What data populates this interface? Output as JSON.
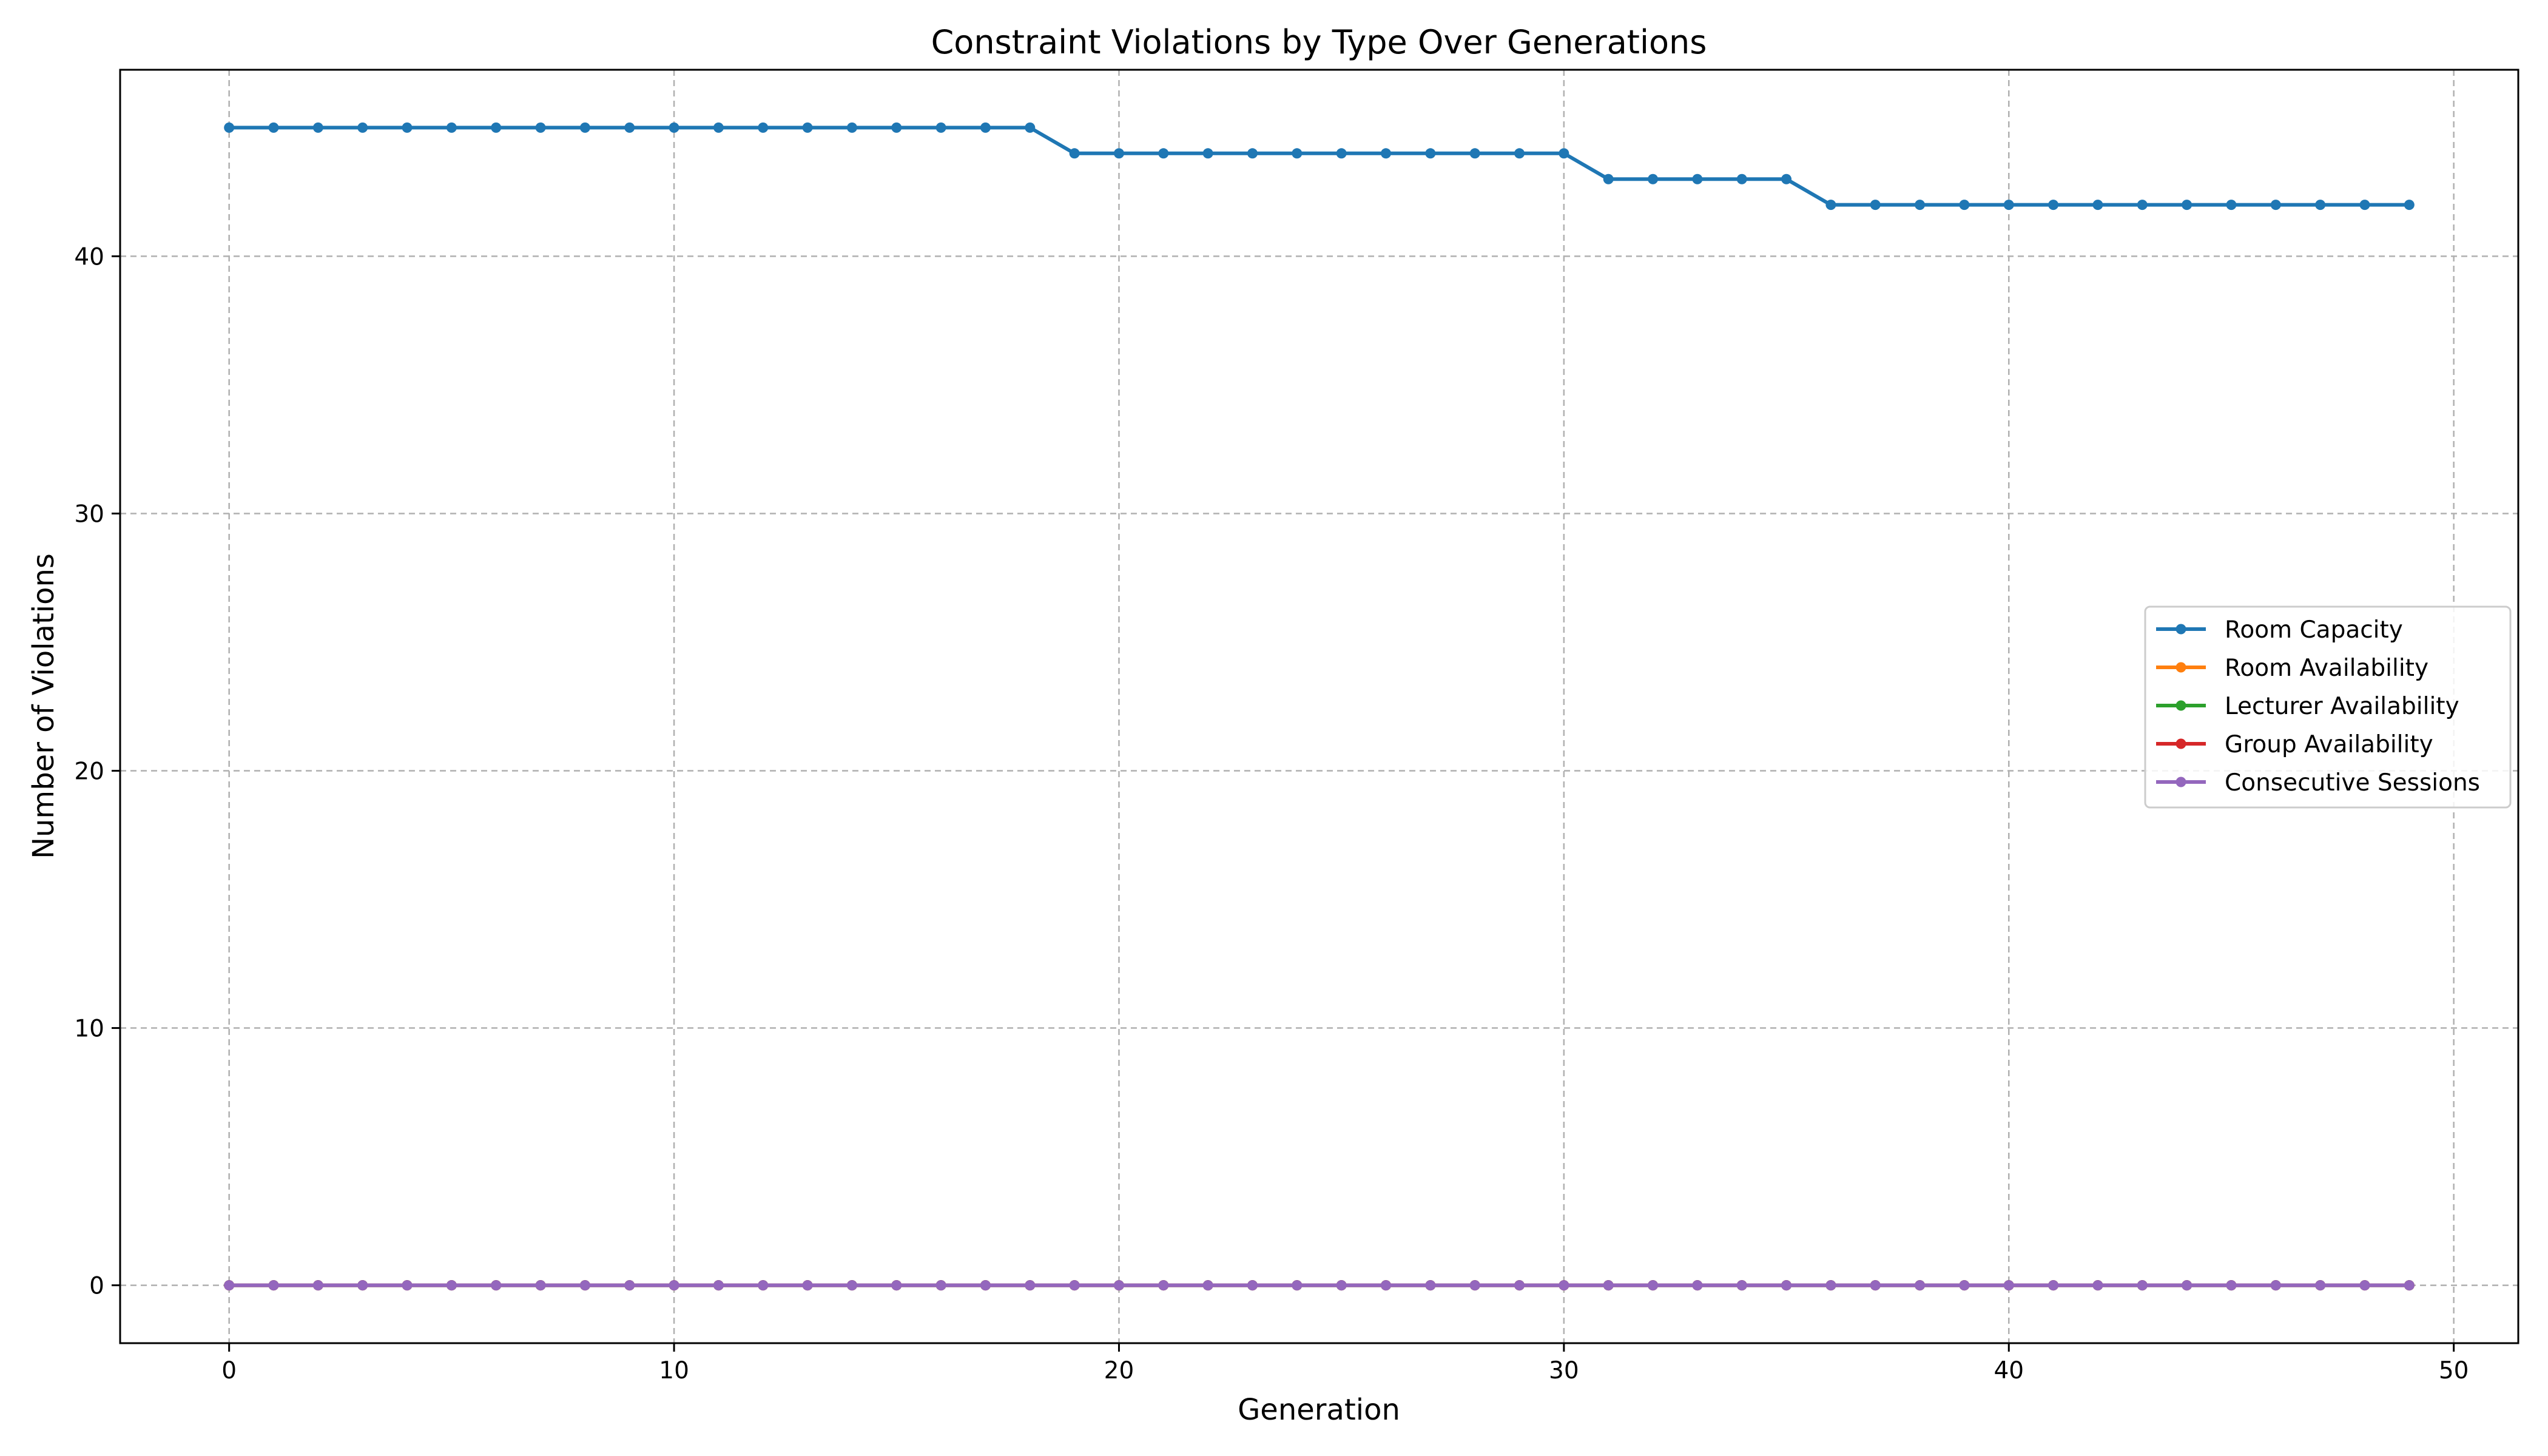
{
  "chart_data": {
    "type": "line",
    "title": "Constraint Violations by Type Over Generations",
    "xlabel": "Generation",
    "ylabel": "Number of Violations",
    "xlim": [
      -2.45,
      51.45
    ],
    "ylim": [
      -2.25,
      47.25
    ],
    "xticks": [
      0,
      10,
      20,
      30,
      40,
      50
    ],
    "yticks": [
      0,
      10,
      20,
      30,
      40
    ],
    "grid": true,
    "legend_position": "center-right",
    "x": [
      0,
      1,
      2,
      3,
      4,
      5,
      6,
      7,
      8,
      9,
      10,
      11,
      12,
      13,
      14,
      15,
      16,
      17,
      18,
      19,
      20,
      21,
      22,
      23,
      24,
      25,
      26,
      27,
      28,
      29,
      30,
      31,
      32,
      33,
      34,
      35,
      36,
      37,
      38,
      39,
      40,
      41,
      42,
      43,
      44,
      45,
      46,
      47,
      48,
      49
    ],
    "series": [
      {
        "name": "Room Capacity",
        "color": "#1f77b4",
        "values": [
          45,
          45,
          45,
          45,
          45,
          45,
          45,
          45,
          45,
          45,
          45,
          45,
          45,
          45,
          45,
          45,
          45,
          45,
          45,
          44,
          44,
          44,
          44,
          44,
          44,
          44,
          44,
          44,
          44,
          44,
          44,
          43,
          43,
          43,
          43,
          43,
          42,
          42,
          42,
          42,
          42,
          42,
          42,
          42,
          42,
          42,
          42,
          42,
          42,
          42
        ]
      },
      {
        "name": "Room Availability",
        "color": "#ff7f0e",
        "values": [
          0,
          0,
          0,
          0,
          0,
          0,
          0,
          0,
          0,
          0,
          0,
          0,
          0,
          0,
          0,
          0,
          0,
          0,
          0,
          0,
          0,
          0,
          0,
          0,
          0,
          0,
          0,
          0,
          0,
          0,
          0,
          0,
          0,
          0,
          0,
          0,
          0,
          0,
          0,
          0,
          0,
          0,
          0,
          0,
          0,
          0,
          0,
          0,
          0,
          0
        ]
      },
      {
        "name": "Lecturer Availability",
        "color": "#2ca02c",
        "values": [
          0,
          0,
          0,
          0,
          0,
          0,
          0,
          0,
          0,
          0,
          0,
          0,
          0,
          0,
          0,
          0,
          0,
          0,
          0,
          0,
          0,
          0,
          0,
          0,
          0,
          0,
          0,
          0,
          0,
          0,
          0,
          0,
          0,
          0,
          0,
          0,
          0,
          0,
          0,
          0,
          0,
          0,
          0,
          0,
          0,
          0,
          0,
          0,
          0,
          0
        ]
      },
      {
        "name": "Group Availability",
        "color": "#d62728",
        "values": [
          0,
          0,
          0,
          0,
          0,
          0,
          0,
          0,
          0,
          0,
          0,
          0,
          0,
          0,
          0,
          0,
          0,
          0,
          0,
          0,
          0,
          0,
          0,
          0,
          0,
          0,
          0,
          0,
          0,
          0,
          0,
          0,
          0,
          0,
          0,
          0,
          0,
          0,
          0,
          0,
          0,
          0,
          0,
          0,
          0,
          0,
          0,
          0,
          0,
          0
        ]
      },
      {
        "name": "Consecutive Sessions",
        "color": "#9467bd",
        "values": [
          0,
          0,
          0,
          0,
          0,
          0,
          0,
          0,
          0,
          0,
          0,
          0,
          0,
          0,
          0,
          0,
          0,
          0,
          0,
          0,
          0,
          0,
          0,
          0,
          0,
          0,
          0,
          0,
          0,
          0,
          0,
          0,
          0,
          0,
          0,
          0,
          0,
          0,
          0,
          0,
          0,
          0,
          0,
          0,
          0,
          0,
          0,
          0,
          0,
          0
        ]
      }
    ]
  }
}
